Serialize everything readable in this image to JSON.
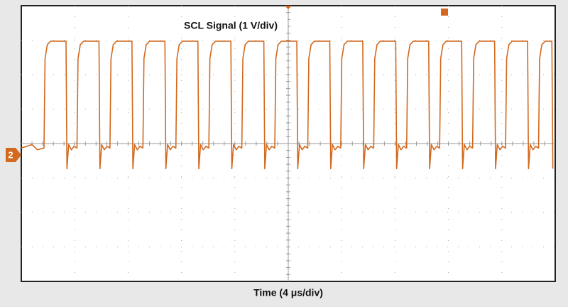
{
  "chart_data": {
    "type": "line",
    "title": "SCL Signal (1 V/div)",
    "x_label": "Time (4 μs/div)",
    "channel_label": "2",
    "color": "#d2691e",
    "xlim": [
      0,
      40
    ],
    "ylim": [
      -3.67,
      4.33
    ],
    "x": [
      0,
      0.8,
      1.2,
      1.7,
      1.78,
      1.95,
      2.2,
      3.35,
      3.42,
      3.55,
      3.75,
      3.95,
      4.17,
      4.25,
      4.42,
      4.67,
      5.82,
      5.89,
      6.02,
      6.22,
      6.42,
      6.64,
      6.72,
      6.89,
      7.14,
      8.29,
      8.36,
      8.49,
      8.69,
      8.89,
      9.11,
      9.19,
      9.36,
      9.61,
      10.76,
      10.83,
      10.96,
      11.16,
      11.36,
      11.58,
      11.66,
      11.83,
      12.08,
      13.23,
      13.3,
      13.43,
      13.63,
      13.83,
      14.05,
      14.13,
      14.3,
      14.55,
      15.7,
      15.77,
      15.9,
      16.1,
      16.3,
      16.52,
      16.6,
      16.77,
      17.02,
      18.17,
      18.24,
      18.37,
      18.57,
      18.77,
      18.99,
      19.07,
      19.24,
      19.49,
      20.64,
      20.71,
      20.84,
      21.04,
      21.24,
      21.46,
      21.54,
      21.71,
      21.96,
      23.11,
      23.18,
      23.31,
      23.51,
      23.71,
      23.93,
      24.01,
      24.18,
      24.43,
      25.58,
      25.65,
      25.78,
      25.98,
      26.18,
      26.4,
      26.48,
      26.65,
      26.9,
      28.05,
      28.12,
      28.25,
      28.45,
      28.65,
      28.87,
      28.95,
      29.12,
      29.37,
      30.52,
      30.59,
      30.72,
      30.92,
      31.12,
      31.34,
      31.42,
      31.59,
      31.84,
      32.99,
      33.06,
      33.19,
      33.39,
      33.59,
      33.81,
      33.89,
      34.06,
      34.31,
      35.46,
      35.53,
      35.66,
      35.86,
      36.06,
      36.28,
      36.36,
      36.53,
      36.78,
      37.93,
      38.0,
      38.13,
      38.33,
      38.53,
      38.75,
      38.83,
      39.0,
      39.25,
      39.75,
      39.82
    ],
    "values": [
      0.2,
      0.3,
      0.15,
      0.2,
      2.8,
      3.2,
      3.3,
      3.3,
      -0.4,
      0.3,
      0.15,
      0.25,
      0.2,
      2.8,
      3.2,
      3.3,
      3.3,
      -0.4,
      0.3,
      0.15,
      0.25,
      0.2,
      2.8,
      3.2,
      3.3,
      3.3,
      -0.4,
      0.3,
      0.15,
      0.25,
      0.2,
      2.8,
      3.2,
      3.3,
      3.3,
      -0.4,
      0.3,
      0.15,
      0.25,
      0.2,
      2.8,
      3.2,
      3.3,
      3.3,
      -0.4,
      0.3,
      0.15,
      0.25,
      0.2,
      2.8,
      3.2,
      3.3,
      3.3,
      -0.4,
      0.3,
      0.15,
      0.25,
      0.2,
      2.8,
      3.2,
      3.3,
      3.3,
      -0.4,
      0.3,
      0.15,
      0.25,
      0.2,
      2.8,
      3.2,
      3.3,
      3.3,
      -0.4,
      0.3,
      0.15,
      0.25,
      0.2,
      2.8,
      3.2,
      3.3,
      3.3,
      -0.4,
      0.3,
      0.15,
      0.25,
      0.2,
      2.8,
      3.2,
      3.3,
      3.3,
      -0.4,
      0.3,
      0.15,
      0.25,
      0.2,
      2.8,
      3.2,
      3.3,
      3.3,
      -0.4,
      0.3,
      0.15,
      0.25,
      0.2,
      2.8,
      3.2,
      3.3,
      3.3,
      -0.4,
      0.3,
      0.15,
      0.25,
      0.2,
      2.8,
      3.2,
      3.3,
      3.3,
      -0.4,
      0.3,
      0.15,
      0.25,
      0.2,
      2.8,
      3.2,
      3.3,
      3.3,
      -0.4,
      0.3,
      0.15,
      0.25,
      0.2,
      2.8,
      3.2,
      3.3,
      3.3,
      -0.4,
      0.3,
      0.15,
      0.25,
      0.2,
      2.8,
      3.2,
      3.3,
      3.3,
      -0.4
    ]
  }
}
